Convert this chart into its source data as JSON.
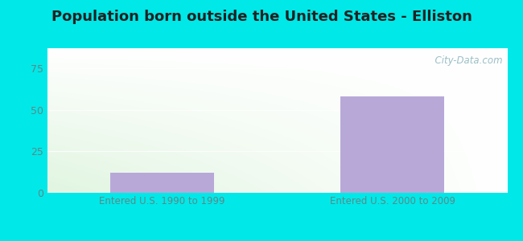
{
  "title": "Population born outside the United States - Elliston",
  "categories": [
    "Entered U.S. 1990 to 1999",
    "Entered U.S. 2000 to 2009"
  ],
  "values": [
    12,
    58
  ],
  "bar_color": "#b8a8d8",
  "ylim": [
    0,
    87
  ],
  "yticks": [
    0,
    25,
    50,
    75
  ],
  "title_fontsize": 13,
  "tick_label_color": "#5a8a8a",
  "outer_bg_color": "#00e8e8",
  "plot_bg_color_topleft": "#e8f8e8",
  "plot_bg_color_topright": "#f0f8f8",
  "plot_bg_color_bottomleft": "#c8eec8",
  "plot_bg_color_bottomright": "#e8f4f8",
  "watermark_text": "  City-Data.com",
  "watermark_color": "#90b8c0"
}
